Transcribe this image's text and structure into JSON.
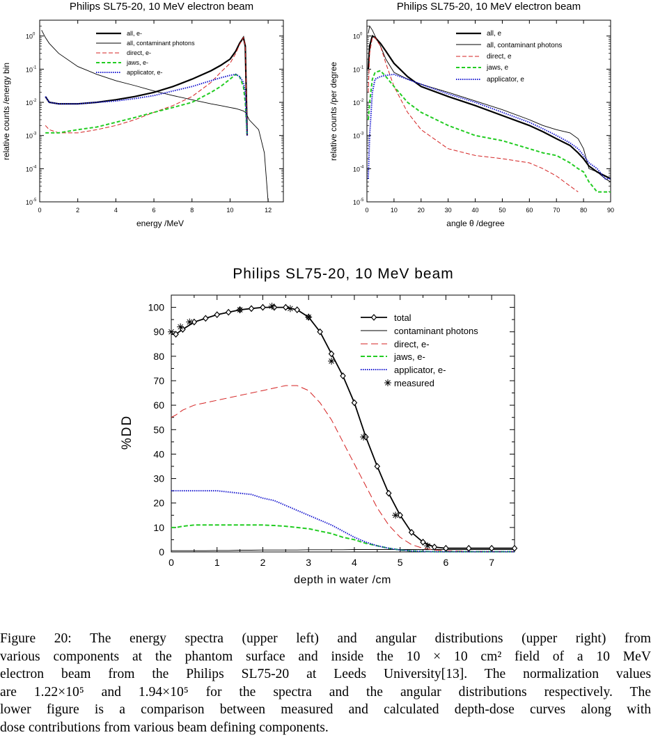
{
  "figure": {
    "charts": [
      {
        "id": "spectra",
        "title": "Philips SL75-20, 10 MeV electron beam",
        "xlabel": "energy /MeV",
        "ylabel": "relative counts /energy bin",
        "x_ticks": [
          "0",
          "2",
          "4",
          "6",
          "8",
          "10",
          "12"
        ],
        "y_tick_mantissa": [
          "10",
          "10",
          "10",
          "10",
          "10",
          "10"
        ],
        "y_tick_exp": [
          "0",
          "-1",
          "-2",
          "-3",
          "-4",
          "-5"
        ],
        "legend": [
          "all, e-",
          "all, contaminant photons",
          "direct, e-",
          "jaws, e-",
          "applicator, e-"
        ]
      },
      {
        "id": "angular",
        "title": "Philips SL75-20, 10 MeV electron beam",
        "xlabel": "angle θ /degree",
        "ylabel": "relative counts /per degree",
        "x_ticks": [
          "0",
          "10",
          "20",
          "30",
          "40",
          "50",
          "60",
          "70",
          "80",
          "90"
        ],
        "y_tick_mantissa": [
          "10",
          "10",
          "10",
          "10",
          "10",
          "10"
        ],
        "y_tick_exp": [
          "0",
          "-1",
          "-2",
          "-3",
          "-4",
          "-5"
        ],
        "legend": [
          "all, e",
          "all, contaminant photons",
          "direct, e",
          "jaws, e",
          "applicator, e"
        ]
      },
      {
        "id": "depth_dose",
        "title": "Philips SL75-20, 10 MeV beam",
        "xlabel": "depth in water /cm",
        "ylabel": "%DD",
        "x_ticks": [
          "0",
          "1",
          "2",
          "3",
          "4",
          "5",
          "6",
          "7"
        ],
        "y_ticks": [
          "0",
          "10",
          "20",
          "30",
          "40",
          "50",
          "60",
          "70",
          "80",
          "90",
          "100"
        ],
        "legend": [
          "total",
          "contaminant photons",
          "direct, e-",
          "jaws, e-",
          "applicator, e-",
          "measured"
        ]
      }
    ],
    "caption": {
      "lines": [
        "Figure 20: The energy spectra (upper left) and angular distributions (upper right) from",
        "various components at the phantom surface and inside the 10 × 10 cm² field of a 10 MeV",
        "electron beam from the Philips SL75-20 at Leeds University[13]. The normalization values",
        "are 1.22×10⁵ and 1.94×10⁵ for the spectra and the angular distributions respectively. The",
        "lower figure is a comparison between measured and calculated depth-dose curves along with",
        "dose contributions from various beam defining components."
      ]
    }
  },
  "colors": {
    "all_e": "#000000",
    "photons": "#000000",
    "direct": "#d42020",
    "jaws": "#22cc22",
    "applicator": "#1a1ad0"
  },
  "chart_data": [
    {
      "type": "line",
      "title": "Philips SL75-20, 10 MeV electron beam",
      "xlabel": "energy /MeV",
      "ylabel": "relative counts /energy bin",
      "xlim": [
        0,
        12.8
      ],
      "ylim": [
        1e-05,
        3
      ],
      "yscale": "log",
      "legend_position": "top-right",
      "x": [
        0.1,
        0.3,
        0.5,
        1,
        2,
        3,
        4,
        5,
        6,
        7,
        8,
        9,
        9.5,
        10,
        10.3,
        10.5,
        10.7,
        10.8,
        10.9,
        11,
        11.5,
        11.8,
        12
      ],
      "series": [
        {
          "name": "all, e-",
          "values": [
            null,
            0.015,
            0.01,
            0.009,
            0.009,
            0.01,
            0.012,
            0.015,
            0.02,
            0.03,
            0.05,
            0.09,
            0.13,
            0.2,
            0.35,
            0.6,
            0.9,
            0.5,
            0.001,
            null,
            null,
            null,
            null
          ]
        },
        {
          "name": "all, contaminant photons",
          "values": [
            1.5,
            0.9,
            0.6,
            0.3,
            0.12,
            0.07,
            0.045,
            0.032,
            0.022,
            0.016,
            0.012,
            0.009,
            0.008,
            0.007,
            0.0065,
            0.006,
            0.0055,
            0.005,
            0.004,
            0.003,
            0.0015,
            0.0003,
            1e-05
          ]
        },
        {
          "name": "direct, e-",
          "values": [
            null,
            0.002,
            0.0015,
            0.0012,
            0.0012,
            0.0015,
            0.002,
            0.003,
            0.005,
            0.008,
            0.015,
            0.04,
            0.08,
            0.15,
            0.3,
            0.55,
            0.9,
            0.5,
            0.001,
            null,
            null,
            null,
            null
          ]
        },
        {
          "name": "jaws, e-",
          "values": [
            null,
            0.0012,
            0.0012,
            0.0012,
            0.0015,
            0.0018,
            0.0025,
            0.0035,
            0.005,
            0.007,
            0.01,
            0.02,
            0.03,
            0.05,
            0.07,
            0.06,
            0.03,
            0.01,
            0.001,
            null,
            null,
            null,
            null
          ]
        },
        {
          "name": "applicator, e-",
          "values": [
            null,
            0.015,
            0.01,
            0.009,
            0.009,
            0.01,
            0.011,
            0.013,
            0.016,
            0.022,
            0.03,
            0.045,
            0.055,
            0.065,
            0.07,
            0.06,
            0.04,
            0.02,
            0.001,
            null,
            null,
            null,
            null
          ]
        }
      ]
    },
    {
      "type": "line",
      "title": "Philips SL75-20, 10 MeV electron beam",
      "xlabel": "angle θ /degree",
      "ylabel": "relative counts /per degree",
      "xlim": [
        0,
        90
      ],
      "ylim": [
        1e-05,
        3
      ],
      "yscale": "log",
      "legend_position": "top-right",
      "x": [
        0.5,
        1,
        2,
        3,
        5,
        7,
        10,
        15,
        20,
        30,
        40,
        50,
        60,
        65,
        70,
        75,
        78,
        80,
        82,
        85,
        88,
        90
      ],
      "series": [
        {
          "name": "all, e",
          "values": [
            0.1,
            0.5,
            1.0,
            0.9,
            0.6,
            0.35,
            0.15,
            0.06,
            0.03,
            0.015,
            0.008,
            0.004,
            0.002,
            0.0013,
            0.0008,
            0.0005,
            0.0003,
            0.0002,
            0.00012,
            8e-05,
            6e-05,
            5e-05
          ]
        },
        {
          "name": "all, contaminant photons",
          "values": [
            1.2,
            2.0,
            1.5,
            1.0,
            0.5,
            0.2,
            0.08,
            0.05,
            0.035,
            0.02,
            0.011,
            0.006,
            0.003,
            0.002,
            0.0015,
            0.0012,
            0.0008,
            0.0004,
            0.0001,
            8e-05,
            5e-05,
            4e-05
          ]
        },
        {
          "name": "direct, e",
          "values": [
            0.02,
            0.3,
            0.9,
            0.9,
            0.5,
            0.15,
            0.03,
            0.005,
            0.0015,
            0.0004,
            0.00025,
            0.0002,
            0.00015,
            0.0001,
            6e-05,
            3e-05,
            2e-05,
            null,
            null,
            null,
            null,
            null
          ]
        },
        {
          "name": "jaws, e",
          "values": [
            0.003,
            0.01,
            0.05,
            0.08,
            0.09,
            0.06,
            0.03,
            0.01,
            0.005,
            0.002,
            0.001,
            0.0007,
            0.0004,
            0.0003,
            0.00025,
            0.00015,
            0.0001,
            8e-05,
            4e-05,
            2e-05,
            2e-05,
            2e-05
          ]
        },
        {
          "name": "applicator, e",
          "values": [
            5e-05,
            0.001,
            0.02,
            0.05,
            0.06,
            0.065,
            0.07,
            0.05,
            0.035,
            0.018,
            0.01,
            0.005,
            0.0025,
            0.0016,
            0.001,
            0.0006,
            0.0004,
            0.00025,
            0.00015,
            0.0001,
            5e-05,
            5e-05
          ]
        }
      ]
    },
    {
      "type": "line",
      "title": "Philips SL75-20, 10 MeV beam",
      "xlabel": "depth in water /cm",
      "ylabel": "%DD",
      "xlim": [
        0,
        7.5
      ],
      "ylim": [
        0,
        100
      ],
      "legend_position": "top-right",
      "x": [
        0,
        0.1,
        0.25,
        0.5,
        0.75,
        1,
        1.25,
        1.5,
        1.75,
        2,
        2.25,
        2.5,
        2.75,
        3,
        3.25,
        3.5,
        3.75,
        4,
        4.25,
        4.5,
        4.75,
        5,
        5.25,
        5.5,
        5.75,
        6,
        6.5,
        7,
        7.5
      ],
      "series": [
        {
          "name": "total",
          "values": [
            89,
            89,
            91,
            94,
            95.5,
            97,
            98,
            99,
            99.5,
            100,
            100,
            100,
            99,
            96,
            90,
            81,
            72,
            61,
            47,
            35,
            24,
            15,
            8,
            4,
            2,
            1.5,
            1.5,
            1.5,
            1.5
          ]
        },
        {
          "name": "contaminant photons",
          "values": [
            0.5,
            0.5,
            0.5,
            0.5,
            0.5,
            0.6,
            0.6,
            0.7,
            0.7,
            0.8,
            0.8,
            0.8,
            0.8,
            0.9,
            0.9,
            0.9,
            0.9,
            1,
            1,
            1,
            1,
            1,
            1,
            1,
            1,
            1,
            1,
            1,
            1
          ]
        },
        {
          "name": "direct, e-",
          "values": [
            55,
            56,
            58,
            60,
            61,
            62,
            63,
            64,
            65,
            66,
            67,
            68,
            68,
            66,
            61,
            54,
            45,
            36,
            27,
            18,
            11,
            6,
            3,
            1.5,
            0.8,
            0.5,
            0.3,
            0.2,
            0.2
          ]
        },
        {
          "name": "jaws, e-",
          "values": [
            10,
            10,
            10.5,
            11,
            11,
            11,
            11,
            11,
            11,
            11,
            10.8,
            10.5,
            10,
            9.5,
            8.5,
            7.5,
            6,
            5,
            3.5,
            2.5,
            1.5,
            0.8,
            0.4,
            0.2,
            0.1,
            0.1,
            0.1,
            0.1,
            0.1
          ]
        },
        {
          "name": "applicator, e-",
          "values": [
            25,
            25,
            25,
            25,
            25,
            25,
            24.5,
            24,
            23.5,
            22,
            21,
            19,
            17,
            15,
            13,
            11,
            8.5,
            6,
            4,
            2.5,
            1.5,
            0.8,
            0.4,
            0.2,
            0.1,
            0.1,
            0.1,
            0.1,
            0.1
          ]
        },
        {
          "name": "measured",
          "x": [
            0,
            0.2,
            0.4,
            1.5,
            2.2,
            2.6,
            3.0,
            3.5,
            4.2,
            4.9,
            5.6
          ],
          "values": [
            90,
            92,
            94,
            99,
            100.5,
            99.5,
            96,
            78,
            47,
            15,
            2.5
          ]
        }
      ]
    }
  ]
}
